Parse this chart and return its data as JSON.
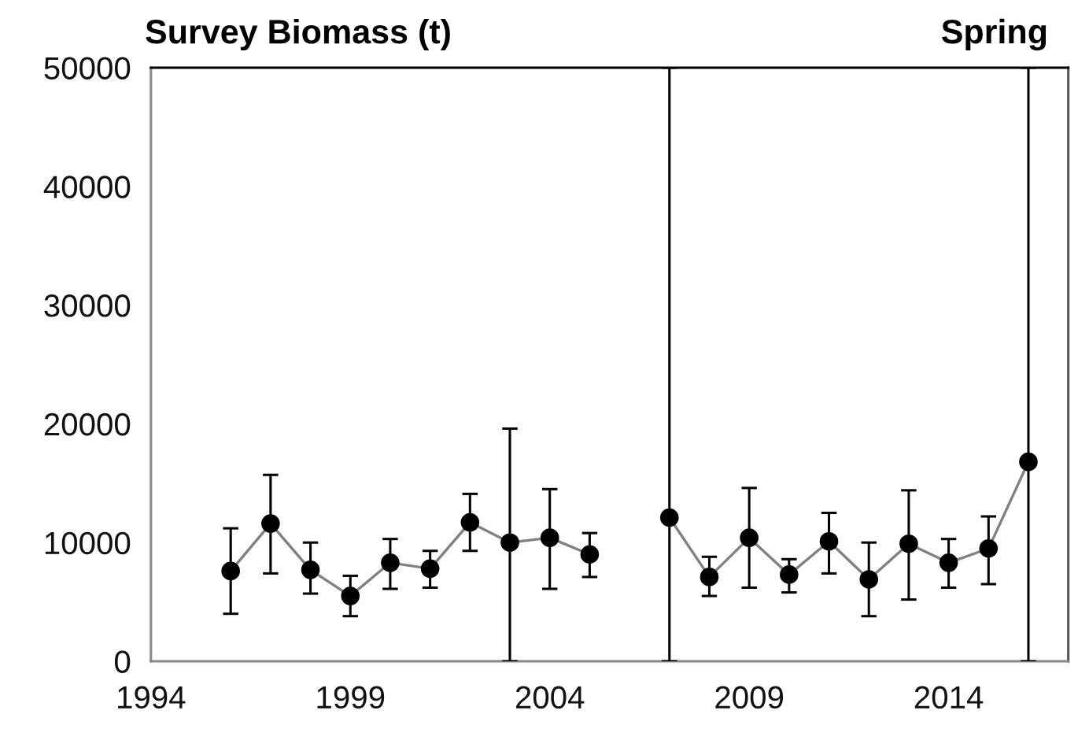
{
  "chart_data": {
    "type": "line",
    "title": "Survey Biomass (t)",
    "subtitle": "Spring",
    "x": [
      1996,
      1997,
      1998,
      1999,
      2000,
      2001,
      2002,
      2003,
      2004,
      2005,
      2006,
      2007,
      2008,
      2009,
      2010,
      2011,
      2012,
      2013,
      2014,
      2015,
      2016
    ],
    "series": [
      {
        "color": "#000000",
        "values": [
          7600,
          11600,
          7700,
          5500,
          8300,
          7800,
          11700,
          10000,
          10400,
          9000,
          null,
          12100,
          7100,
          10400,
          7300,
          10100,
          6900,
          9900,
          8300,
          9500,
          16800
        ],
        "errors": [
          [
            4000,
            11200
          ],
          [
            7400,
            15700
          ],
          [
            5700,
            10000
          ],
          [
            3800,
            7200
          ],
          [
            6100,
            10300
          ],
          [
            6200,
            9300
          ],
          [
            9300,
            14100
          ],
          [
            0,
            19600
          ],
          [
            6100,
            14500
          ],
          [
            7100,
            10800
          ],
          null,
          [
            0,
            50000
          ],
          [
            5500,
            8800
          ],
          [
            6200,
            14600
          ],
          [
            5800,
            8600
          ],
          [
            7400,
            12500
          ],
          [
            3800,
            10000
          ],
          [
            5200,
            14400
          ],
          [
            6200,
            10300
          ],
          [
            6500,
            12200
          ],
          [
            0,
            50000
          ]
        ]
      }
    ],
    "xlim": [
      1994,
      2017
    ],
    "xticks": [
      1994,
      1999,
      2004,
      2009,
      2014
    ],
    "ylim": [
      0,
      50000
    ],
    "yticks": [
      0,
      10000,
      20000,
      30000,
      40000,
      50000
    ],
    "marker": "circle",
    "line_style": "solid"
  }
}
